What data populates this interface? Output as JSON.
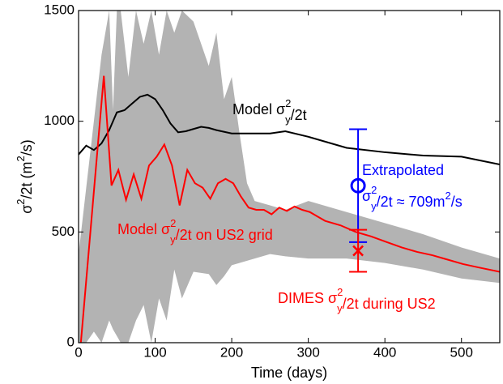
{
  "chart_data": {
    "type": "line",
    "x_label": "Time (days)",
    "y_label": [
      "σ",
      {
        "sup": "2"
      },
      "/2t (m",
      {
        "sup": "2"
      },
      "/s)"
    ],
    "xlim": [
      0,
      550
    ],
    "ylim": [
      0,
      1500
    ],
    "xticks": [
      0,
      100,
      200,
      300,
      400,
      500
    ],
    "yticks": [
      0,
      500,
      1000,
      1500
    ],
    "band": {
      "color": "#b3b3b3",
      "x": [
        0,
        10,
        20,
        30,
        40,
        45,
        50,
        55,
        65,
        75,
        85,
        95,
        105,
        115,
        125,
        135,
        150,
        170,
        180,
        190,
        200,
        210,
        220,
        230,
        250,
        270,
        300,
        350,
        400,
        450,
        500,
        550
      ],
      "lower": [
        0,
        0,
        50,
        0,
        100,
        60,
        30,
        0,
        0,
        100,
        170,
        0,
        200,
        100,
        330,
        200,
        320,
        310,
        260,
        300,
        350,
        360,
        370,
        380,
        400,
        390,
        380,
        380,
        360,
        330,
        290,
        270
      ],
      "upper": [
        400,
        700,
        1000,
        1300,
        1500,
        1050,
        1500,
        1500,
        1200,
        1500,
        1350,
        1500,
        1300,
        1500,
        1400,
        1500,
        1450,
        1250,
        1400,
        1100,
        1200,
        950,
        720,
        640,
        620,
        600,
        640,
        590,
        540,
        490,
        430,
        380
      ]
    },
    "series": [
      {
        "name": [
          "Model σ",
          {
            "sup": "2",
            "sub": "y"
          },
          "/2t"
        ],
        "color": "#000000",
        "x": [
          0,
          10,
          20,
          30,
          40,
          50,
          60,
          70,
          80,
          90,
          100,
          110,
          120,
          130,
          140,
          150,
          160,
          170,
          180,
          200,
          250,
          270,
          300,
          350,
          400,
          450,
          500,
          550
        ],
        "values": [
          850,
          890,
          870,
          900,
          960,
          1040,
          1050,
          1080,
          1110,
          1120,
          1100,
          1050,
          990,
          950,
          955,
          965,
          975,
          970,
          960,
          945,
          945,
          955,
          930,
          880,
          860,
          845,
          840,
          805
        ]
      },
      {
        "name": [
          "Model σ",
          {
            "sup": "2",
            "sub": "y"
          },
          "/2t on US2 grid"
        ],
        "color": "#ff0000",
        "x": [
          3,
          33,
          43,
          52,
          62,
          72,
          82,
          92,
          102,
          112,
          122,
          132,
          142,
          152,
          162,
          172,
          182,
          192,
          202,
          212,
          222,
          232,
          242,
          252,
          262,
          272,
          282,
          292,
          302,
          312,
          322,
          342,
          362,
          382,
          402,
          422,
          442,
          462,
          482,
          502,
          522,
          550
        ],
        "values": [
          0,
          1205,
          710,
          780,
          645,
          760,
          650,
          800,
          840,
          895,
          800,
          620,
          780,
          720,
          700,
          650,
          720,
          740,
          720,
          660,
          610,
          600,
          600,
          580,
          610,
          595,
          615,
          600,
          590,
          570,
          550,
          530,
          500,
          480,
          455,
          430,
          410,
          395,
          375,
          355,
          340,
          320
        ]
      }
    ],
    "errorbars": [
      {
        "label": [
          [
            "Extrapolated"
          ],
          [
            "σ",
            {
              "sup": "2",
              "sub": "y"
            },
            "/2t ≈ 709m",
            {
              "sup": "2"
            },
            "/s"
          ]
        ],
        "color": "#0000ff",
        "marker": "o",
        "x": 365,
        "value": 709,
        "err": 255
      },
      {
        "label": [
          [
            "DIMES σ",
            {
              "sup": "2",
              "sub": "y"
            },
            "/2t during US2"
          ]
        ],
        "color": "#ff0000",
        "marker": "x",
        "x": 365,
        "value": 415,
        "err": 95
      }
    ]
  }
}
